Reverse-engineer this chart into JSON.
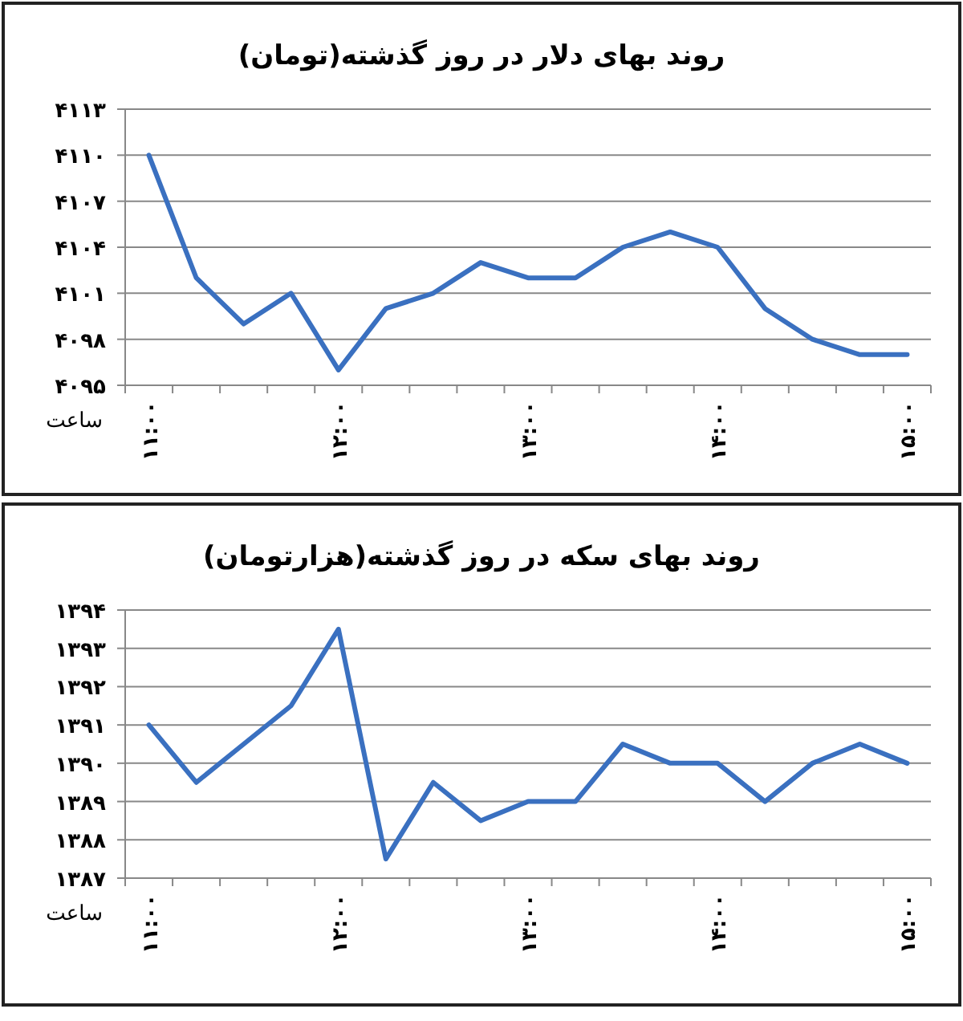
{
  "chart_data": [
    {
      "type": "line",
      "title": "روند بهای دلار در روز گذشته(تومان)",
      "xlabel": "ساعت",
      "categories": [
        "۱۱:۰۰",
        null,
        null,
        null,
        "۱۲:۰۰",
        null,
        null,
        null,
        "۱۳:۰۰",
        null,
        null,
        null,
        "۱۴:۰۰",
        null,
        null,
        null,
        "۱۵:۰۰"
      ],
      "series": [
        {
          "color": "#3a70c0",
          "values": [
            4110,
            4102,
            4099,
            4101,
            4096,
            4100,
            4101,
            4103,
            4102,
            4102,
            4104,
            4105,
            4104,
            4100,
            4098,
            4097,
            4097
          ]
        }
      ],
      "ylim": [
        4095,
        4113
      ],
      "yticks": [
        {
          "value": 4095,
          "label": "۴۰۹۵"
        },
        {
          "value": 4098,
          "label": "۴۰۹۸"
        },
        {
          "value": 4101,
          "label": "۴۱۰۱"
        },
        {
          "value": 4104,
          "label": "۴۱۰۴"
        },
        {
          "value": 4107,
          "label": "۴۱۰۷"
        },
        {
          "value": 4110,
          "label": "۴۱۱۰"
        },
        {
          "value": 4113,
          "label": "۴۱۱۳"
        }
      ],
      "grid": "y",
      "marker": "none",
      "line_style": "solid"
    },
    {
      "type": "line",
      "title": "روند بهای سکه در روز گذشته(هزارتومان)",
      "xlabel": "ساعت",
      "categories": [
        "۱۱:۰۰",
        null,
        null,
        null,
        "۱۲:۰۰",
        null,
        null,
        null,
        "۱۳:۰۰",
        null,
        null,
        null,
        "۱۴:۰۰",
        null,
        null,
        null,
        "۱۵:۰۰"
      ],
      "series": [
        {
          "color": "#3a70c0",
          "values": [
            1391,
            1389.5,
            1390.5,
            1391.5,
            1393.5,
            1387.5,
            1389.5,
            1388.5,
            1389,
            1389,
            1390.5,
            1390,
            1390,
            1389,
            1390,
            1390.5,
            1390
          ]
        }
      ],
      "ylim": [
        1387,
        1394
      ],
      "yticks": [
        {
          "value": 1387,
          "label": "۱۳۸۷"
        },
        {
          "value": 1388,
          "label": "۱۳۸۸"
        },
        {
          "value": 1389,
          "label": "۱۳۸۹"
        },
        {
          "value": 1390,
          "label": "۱۳۹۰"
        },
        {
          "value": 1391,
          "label": "۱۳۹۱"
        },
        {
          "value": 1392,
          "label": "۱۳۹۲"
        },
        {
          "value": 1393,
          "label": "۱۳۹۳"
        },
        {
          "value": 1394,
          "label": "۱۳۹۴"
        }
      ],
      "grid": "y",
      "marker": "none",
      "line_style": "solid"
    }
  ]
}
